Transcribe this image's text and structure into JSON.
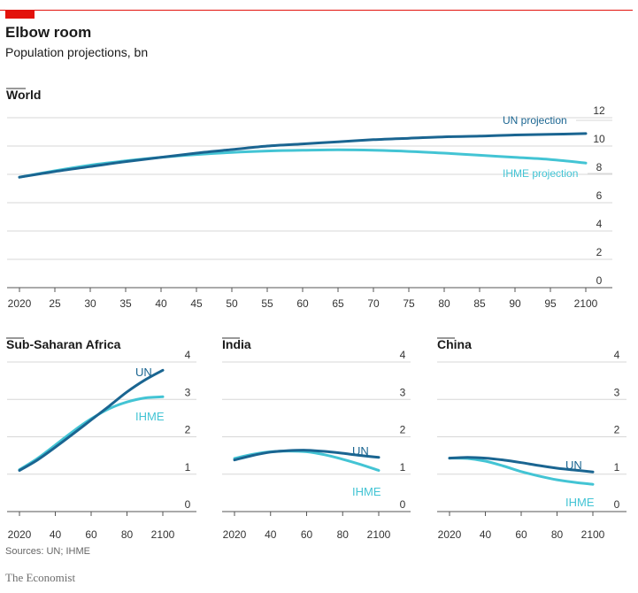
{
  "title": "Elbow room",
  "subtitle": "Population projections, bn",
  "source": "Sources: UN; IHME",
  "brand": "The Economist",
  "colors": {
    "un": "#1a6591",
    "ihme": "#43c4d4",
    "accent": "#e3120b",
    "grid": "#d7d7d7"
  },
  "chart_data": [
    {
      "type": "line",
      "panel_title": "World",
      "x_ticks": [
        "2020",
        "25",
        "30",
        "35",
        "40",
        "45",
        "50",
        "55",
        "60",
        "65",
        "70",
        "75",
        "80",
        "85",
        "90",
        "95",
        "2100"
      ],
      "y_ticks": [
        "0",
        "2",
        "4",
        "6",
        "8",
        "10",
        "12"
      ],
      "xlim": [
        2020,
        2100
      ],
      "ylim": [
        0,
        12
      ],
      "series": [
        {
          "name": "UN projection",
          "x": [
            2020,
            2025,
            2030,
            2035,
            2040,
            2045,
            2050,
            2055,
            2060,
            2065,
            2070,
            2075,
            2080,
            2085,
            2090,
            2095,
            2100
          ],
          "y": [
            7.8,
            8.2,
            8.55,
            8.9,
            9.2,
            9.5,
            9.75,
            10.0,
            10.15,
            10.3,
            10.45,
            10.55,
            10.65,
            10.7,
            10.78,
            10.83,
            10.88
          ]
        },
        {
          "name": "IHME projection",
          "x": [
            2020,
            2025,
            2030,
            2035,
            2040,
            2045,
            2050,
            2055,
            2060,
            2065,
            2070,
            2075,
            2080,
            2085,
            2090,
            2095,
            2100
          ],
          "y": [
            7.8,
            8.25,
            8.65,
            8.95,
            9.2,
            9.4,
            9.55,
            9.65,
            9.7,
            9.73,
            9.7,
            9.62,
            9.5,
            9.35,
            9.2,
            9.05,
            8.8
          ]
        }
      ]
    },
    {
      "type": "line",
      "panel_title": "Sub-Saharan Africa",
      "x_ticks": [
        "2020",
        "40",
        "60",
        "80",
        "2100"
      ],
      "y_ticks": [
        "0",
        "1",
        "2",
        "3",
        "4"
      ],
      "xlim": [
        2020,
        2100
      ],
      "ylim": [
        0,
        4
      ],
      "series": [
        {
          "name": "UN",
          "x": [
            2020,
            2030,
            2040,
            2050,
            2060,
            2070,
            2080,
            2090,
            2100
          ],
          "y": [
            1.1,
            1.38,
            1.72,
            2.08,
            2.45,
            2.82,
            3.2,
            3.52,
            3.78
          ]
        },
        {
          "name": "IHME",
          "x": [
            2020,
            2030,
            2040,
            2050,
            2060,
            2070,
            2080,
            2090,
            2100
          ],
          "y": [
            1.12,
            1.42,
            1.78,
            2.15,
            2.48,
            2.75,
            2.93,
            3.04,
            3.07
          ]
        }
      ]
    },
    {
      "type": "line",
      "panel_title": "India",
      "x_ticks": [
        "2020",
        "40",
        "60",
        "80",
        "2100"
      ],
      "y_ticks": [
        "0",
        "1",
        "2",
        "3",
        "4"
      ],
      "xlim": [
        2020,
        2100
      ],
      "ylim": [
        0,
        4
      ],
      "series": [
        {
          "name": "UN",
          "x": [
            2020,
            2030,
            2040,
            2050,
            2060,
            2070,
            2080,
            2090,
            2100
          ],
          "y": [
            1.38,
            1.5,
            1.59,
            1.63,
            1.64,
            1.61,
            1.56,
            1.5,
            1.45
          ]
        },
        {
          "name": "IHME",
          "x": [
            2020,
            2030,
            2040,
            2050,
            2060,
            2070,
            2080,
            2090,
            2100
          ],
          "y": [
            1.42,
            1.53,
            1.6,
            1.62,
            1.6,
            1.52,
            1.4,
            1.26,
            1.1
          ]
        }
      ]
    },
    {
      "type": "line",
      "panel_title": "China",
      "x_ticks": [
        "2020",
        "40",
        "60",
        "80",
        "2100"
      ],
      "y_ticks": [
        "0",
        "1",
        "2",
        "3",
        "4"
      ],
      "xlim": [
        2020,
        2100
      ],
      "ylim": [
        0,
        4
      ],
      "series": [
        {
          "name": "UN",
          "x": [
            2020,
            2030,
            2040,
            2050,
            2060,
            2070,
            2080,
            2090,
            2100
          ],
          "y": [
            1.43,
            1.45,
            1.43,
            1.38,
            1.31,
            1.23,
            1.16,
            1.11,
            1.06
          ]
        },
        {
          "name": "IHME",
          "x": [
            2020,
            2030,
            2040,
            2050,
            2060,
            2070,
            2080,
            2090,
            2100
          ],
          "y": [
            1.43,
            1.42,
            1.35,
            1.22,
            1.07,
            0.95,
            0.85,
            0.78,
            0.73
          ]
        }
      ]
    }
  ]
}
